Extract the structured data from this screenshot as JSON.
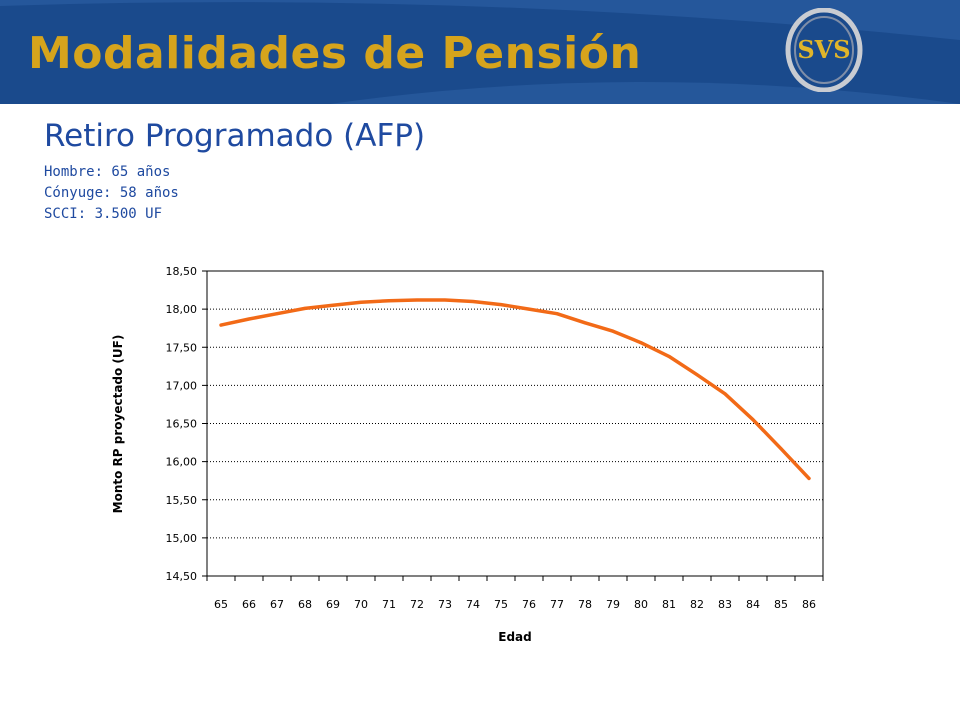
{
  "header": {
    "title": "Modalidades de Pensión",
    "logo_text": "SVS",
    "bg_color": "#1a4a8c",
    "title_color": "#d6a41c"
  },
  "content": {
    "subtitle": "Retiro Programado (AFP)",
    "info_lines": [
      "Hombre: 65 años",
      "Cónyuge: 58 años",
      "SCCI: 3.500 UF"
    ]
  },
  "chart_data": {
    "type": "line",
    "xlabel": "Edad",
    "ylabel": "Monto RP proyectado (UF)",
    "ylim": [
      14.5,
      18.5
    ],
    "yticks": [
      "14,50",
      "15,00",
      "15,50",
      "16,00",
      "16,50",
      "17,00",
      "17,50",
      "18,00",
      "18,50"
    ],
    "categories": [
      "65",
      "66",
      "67",
      "68",
      "69",
      "70",
      "71",
      "72",
      "73",
      "74",
      "75",
      "76",
      "77",
      "78",
      "79",
      "80",
      "81",
      "82",
      "83",
      "84",
      "85",
      "86"
    ],
    "series": [
      {
        "values": [
          17.79,
          17.87,
          17.94,
          18.01,
          18.05,
          18.09,
          18.11,
          18.12,
          18.12,
          18.1,
          18.06,
          18.0,
          17.94,
          17.82,
          17.71,
          17.56,
          17.38,
          17.14,
          16.89,
          16.55,
          16.17,
          15.78
        ],
        "color": "#f26a17"
      }
    ],
    "grid": "horizontal-dotted",
    "legend": "none"
  }
}
